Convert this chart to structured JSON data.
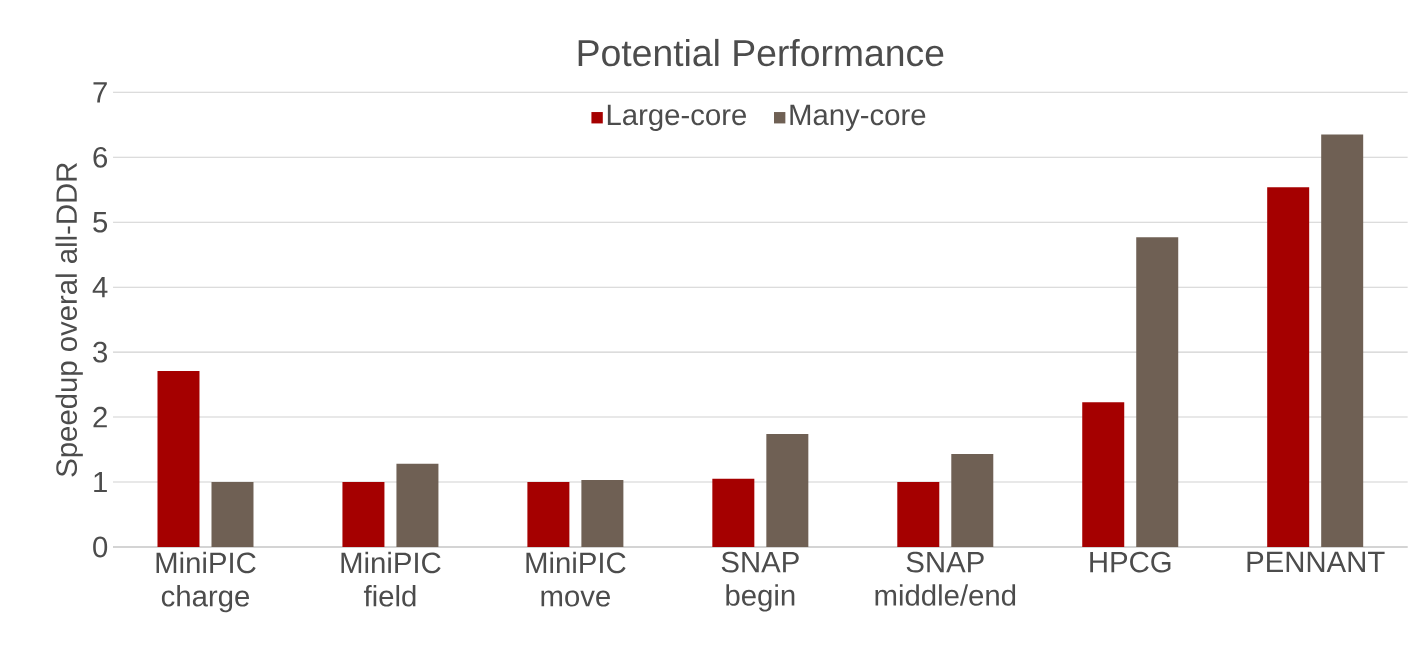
{
  "chart_data": {
    "type": "bar",
    "title": "Potential Performance",
    "ylabel": "Speedup overal all-DDR",
    "categories": [
      "MiniPIC charge",
      "MiniPIC field",
      "MiniPIC move",
      "SNAP begin",
      "SNAP middle/end",
      "HPCG",
      "PENNANT"
    ],
    "series": [
      {
        "name": "Large-core",
        "color": "#a50000",
        "values": [
          2.71,
          1.0,
          1.0,
          1.05,
          1.0,
          2.23,
          5.54
        ]
      },
      {
        "name": "Many-core",
        "color": "#6f6054",
        "values": [
          1.0,
          1.28,
          1.03,
          1.74,
          1.43,
          4.77,
          6.35
        ]
      }
    ],
    "ylim": [
      0,
      7
    ],
    "yticks": [
      0,
      1,
      2,
      3,
      4,
      5,
      6,
      7
    ],
    "grid": "y",
    "legend": "top"
  }
}
